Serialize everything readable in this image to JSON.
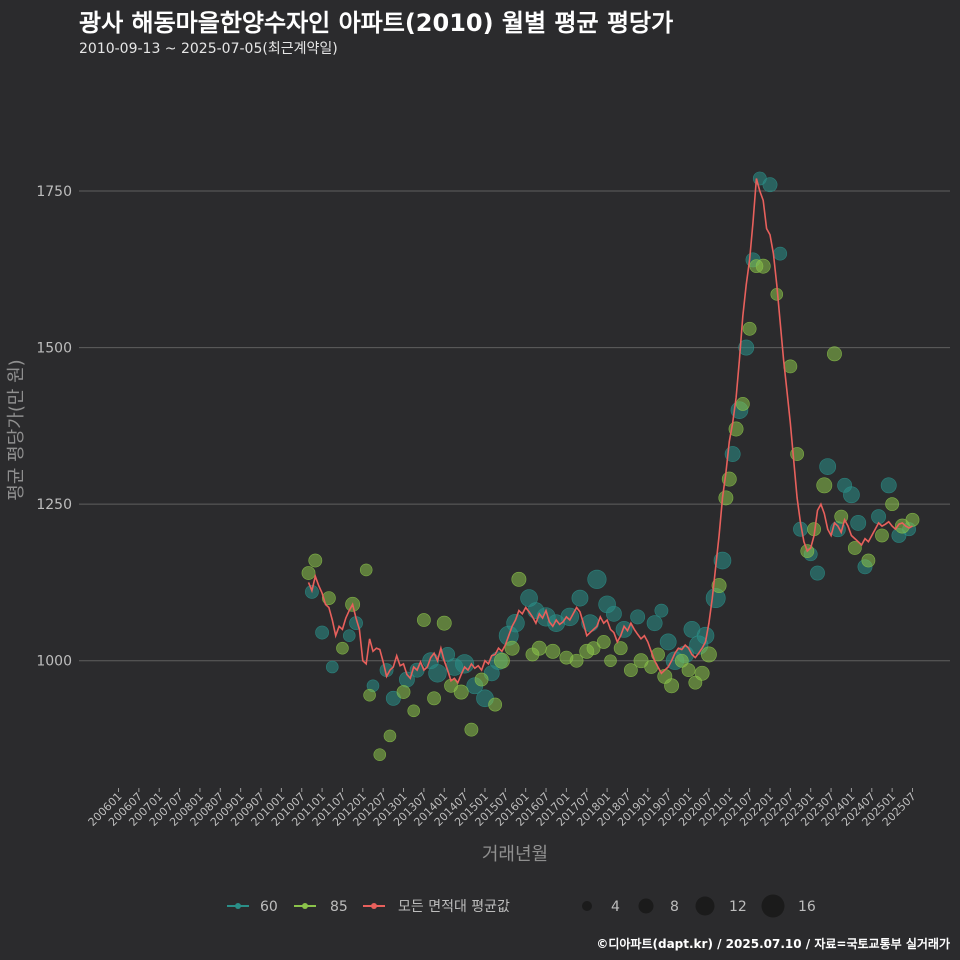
{
  "colors": {
    "background": "#2b2b2d",
    "grid": "#5f5f5f",
    "s60": "#2a8f88",
    "s85": "#8bc34a",
    "avg": "#e8605c"
  },
  "chart_data": {
    "type": "scatter",
    "title": "광사 해동마을한양수자인 아파트(2010) 월별 평균 평당가",
    "subtitle": "2010-09-13 ~ 2025-07-05(최근계약일)",
    "xlabel": "거래년월",
    "ylabel": "평균 평당가(만 원)",
    "ylim": [
      800,
      1940
    ],
    "yticks": [
      1000,
      1250,
      1500,
      1750
    ],
    "xlim": [
      "2006-01",
      "2025-07"
    ],
    "xticks": [
      "200601",
      "200607",
      "200701",
      "200707",
      "200801",
      "200807",
      "200901",
      "200907",
      "201001",
      "201007",
      "201101",
      "201107",
      "201201",
      "201207",
      "201301",
      "201307",
      "201401",
      "201407",
      "201501",
      "201507",
      "201601",
      "201607",
      "201701",
      "201707",
      "201801",
      "201807",
      "201901",
      "201907",
      "202001",
      "202007",
      "202101",
      "202107",
      "202201",
      "202207",
      "202301",
      "202307",
      "202401",
      "202407",
      "202501",
      "202507"
    ],
    "legend": {
      "series": [
        {
          "key": "60",
          "label": "60",
          "color": "#2a8f88"
        },
        {
          "key": "85",
          "label": "85",
          "color": "#8bc34a"
        },
        {
          "key": "avg",
          "label": "모든 면적대 평균값",
          "color": "#e8605c"
        }
      ],
      "size_title": "",
      "sizes": [
        4,
        8,
        12,
        16
      ]
    },
    "avg_line": [
      [
        "2010-09",
        1125
      ],
      [
        "2010-10",
        1112
      ],
      [
        "2010-11",
        1135
      ],
      [
        "2010-12",
        1120
      ],
      [
        "2011-01",
        1108
      ],
      [
        "2011-02",
        1090
      ],
      [
        "2011-03",
        1085
      ],
      [
        "2011-04",
        1065
      ],
      [
        "2011-05",
        1040
      ],
      [
        "2011-06",
        1055
      ],
      [
        "2011-07",
        1050
      ],
      [
        "2011-08",
        1068
      ],
      [
        "2011-09",
        1080
      ],
      [
        "2011-10",
        1090
      ],
      [
        "2011-11",
        1068
      ],
      [
        "2011-12",
        1050
      ],
      [
        "2012-01",
        1000
      ],
      [
        "2012-02",
        995
      ],
      [
        "2012-03",
        1035
      ],
      [
        "2012-04",
        1015
      ],
      [
        "2012-05",
        1020
      ],
      [
        "2012-06",
        1018
      ],
      [
        "2012-07",
        998
      ],
      [
        "2012-08",
        975
      ],
      [
        "2012-09",
        985
      ],
      [
        "2012-10",
        990
      ],
      [
        "2012-11",
        1008
      ],
      [
        "2012-12",
        992
      ],
      [
        "2013-01",
        995
      ],
      [
        "2013-02",
        978
      ],
      [
        "2013-03",
        972
      ],
      [
        "2013-04",
        990
      ],
      [
        "2013-05",
        985
      ],
      [
        "2013-06",
        998
      ],
      [
        "2013-07",
        985
      ],
      [
        "2013-08",
        990
      ],
      [
        "2013-09",
        1005
      ],
      [
        "2013-10",
        1012
      ],
      [
        "2013-11",
        1000
      ],
      [
        "2013-12",
        1020
      ],
      [
        "2014-01",
        1000
      ],
      [
        "2014-02",
        985
      ],
      [
        "2014-03",
        968
      ],
      [
        "2014-04",
        972
      ],
      [
        "2014-05",
        965
      ],
      [
        "2014-06",
        978
      ],
      [
        "2014-07",
        990
      ],
      [
        "2014-08",
        985
      ],
      [
        "2014-09",
        995
      ],
      [
        "2014-10",
        988
      ],
      [
        "2014-11",
        992
      ],
      [
        "2014-12",
        985
      ],
      [
        "2015-01",
        1000
      ],
      [
        "2015-02",
        995
      ],
      [
        "2015-03",
        1008
      ],
      [
        "2015-04",
        1010
      ],
      [
        "2015-05",
        1020
      ],
      [
        "2015-06",
        1015
      ],
      [
        "2015-07",
        1025
      ],
      [
        "2015-08",
        1040
      ],
      [
        "2015-09",
        1055
      ],
      [
        "2015-10",
        1065
      ],
      [
        "2015-11",
        1080
      ],
      [
        "2015-12",
        1075
      ],
      [
        "2016-01",
        1085
      ],
      [
        "2016-02",
        1078
      ],
      [
        "2016-03",
        1070
      ],
      [
        "2016-04",
        1060
      ],
      [
        "2016-05",
        1075
      ],
      [
        "2016-06",
        1068
      ],
      [
        "2016-07",
        1080
      ],
      [
        "2016-08",
        1062
      ],
      [
        "2016-09",
        1055
      ],
      [
        "2016-10",
        1065
      ],
      [
        "2016-11",
        1058
      ],
      [
        "2016-12",
        1062
      ],
      [
        "2017-01",
        1070
      ],
      [
        "2017-02",
        1065
      ],
      [
        "2017-03",
        1075
      ],
      [
        "2017-04",
        1085
      ],
      [
        "2017-05",
        1078
      ],
      [
        "2017-06",
        1060
      ],
      [
        "2017-07",
        1040
      ],
      [
        "2017-08",
        1045
      ],
      [
        "2017-09",
        1050
      ],
      [
        "2017-10",
        1055
      ],
      [
        "2017-11",
        1070
      ],
      [
        "2017-12",
        1060
      ],
      [
        "2018-01",
        1065
      ],
      [
        "2018-02",
        1050
      ],
      [
        "2018-03",
        1045
      ],
      [
        "2018-04",
        1030
      ],
      [
        "2018-05",
        1040
      ],
      [
        "2018-06",
        1055
      ],
      [
        "2018-07",
        1048
      ],
      [
        "2018-08",
        1060
      ],
      [
        "2018-09",
        1050
      ],
      [
        "2018-10",
        1042
      ],
      [
        "2018-11",
        1035
      ],
      [
        "2018-12",
        1040
      ],
      [
        "2019-01",
        1030
      ],
      [
        "2019-02",
        1015
      ],
      [
        "2019-03",
        1000
      ],
      [
        "2019-04",
        990
      ],
      [
        "2019-05",
        980
      ],
      [
        "2019-06",
        985
      ],
      [
        "2019-07",
        990
      ],
      [
        "2019-08",
        1000
      ],
      [
        "2019-09",
        1012
      ],
      [
        "2019-10",
        1020
      ],
      [
        "2019-11",
        1018
      ],
      [
        "2019-12",
        1025
      ],
      [
        "2020-01",
        1020
      ],
      [
        "2020-02",
        1010
      ],
      [
        "2020-03",
        1005
      ],
      [
        "2020-04",
        1012
      ],
      [
        "2020-05",
        1020
      ],
      [
        "2020-06",
        1030
      ],
      [
        "2020-07",
        1060
      ],
      [
        "2020-08",
        1100
      ],
      [
        "2020-09",
        1150
      ],
      [
        "2020-10",
        1200
      ],
      [
        "2020-11",
        1260
      ],
      [
        "2020-12",
        1300
      ],
      [
        "2021-01",
        1350
      ],
      [
        "2021-02",
        1380
      ],
      [
        "2021-03",
        1420
      ],
      [
        "2021-04",
        1480
      ],
      [
        "2021-05",
        1550
      ],
      [
        "2021-06",
        1600
      ],
      [
        "2021-07",
        1640
      ],
      [
        "2021-08",
        1700
      ],
      [
        "2021-09",
        1770
      ],
      [
        "2021-10",
        1750
      ],
      [
        "2021-11",
        1735
      ],
      [
        "2021-12",
        1690
      ],
      [
        "2022-01",
        1680
      ],
      [
        "2022-02",
        1650
      ],
      [
        "2022-03",
        1600
      ],
      [
        "2022-04",
        1540
      ],
      [
        "2022-05",
        1480
      ],
      [
        "2022-06",
        1430
      ],
      [
        "2022-07",
        1380
      ],
      [
        "2022-08",
        1320
      ],
      [
        "2022-09",
        1260
      ],
      [
        "2022-10",
        1220
      ],
      [
        "2022-11",
        1190
      ],
      [
        "2022-12",
        1175
      ],
      [
        "2023-01",
        1180
      ],
      [
        "2023-02",
        1200
      ],
      [
        "2023-03",
        1240
      ],
      [
        "2023-04",
        1250
      ],
      [
        "2023-05",
        1235
      ],
      [
        "2023-06",
        1210
      ],
      [
        "2023-07",
        1200
      ],
      [
        "2023-08",
        1220
      ],
      [
        "2023-09",
        1215
      ],
      [
        "2023-10",
        1205
      ],
      [
        "2023-11",
        1225
      ],
      [
        "2023-12",
        1215
      ],
      [
        "2024-01",
        1200
      ],
      [
        "2024-02",
        1195
      ],
      [
        "2024-03",
        1190
      ],
      [
        "2024-04",
        1185
      ],
      [
        "2024-05",
        1195
      ],
      [
        "2024-06",
        1190
      ],
      [
        "2024-07",
        1200
      ],
      [
        "2024-08",
        1210
      ],
      [
        "2024-09",
        1220
      ],
      [
        "2024-10",
        1215
      ],
      [
        "2024-11",
        1218
      ],
      [
        "2024-12",
        1222
      ],
      [
        "2025-01",
        1215
      ],
      [
        "2025-02",
        1210
      ],
      [
        "2025-03",
        1218
      ],
      [
        "2025-04",
        1220
      ],
      [
        "2025-05",
        1215
      ],
      [
        "2025-06",
        1212
      ],
      [
        "2025-07",
        1215
      ]
    ],
    "points_60": [
      [
        "2010-10",
        1110,
        4
      ],
      [
        "2011-01",
        1045,
        4
      ],
      [
        "2011-04",
        990,
        3
      ],
      [
        "2011-09",
        1040,
        3
      ],
      [
        "2011-11",
        1060,
        4
      ],
      [
        "2012-04",
        960,
        3
      ],
      [
        "2012-08",
        985,
        4
      ],
      [
        "2012-10",
        940,
        5
      ],
      [
        "2013-02",
        970,
        6
      ],
      [
        "2013-05",
        985,
        5
      ],
      [
        "2013-09",
        1000,
        7
      ],
      [
        "2013-11",
        980,
        9
      ],
      [
        "2014-02",
        1010,
        5
      ],
      [
        "2014-04",
        990,
        8
      ],
      [
        "2014-07",
        995,
        10
      ],
      [
        "2014-10",
        960,
        7
      ],
      [
        "2015-01",
        940,
        8
      ],
      [
        "2015-03",
        980,
        6
      ],
      [
        "2015-05",
        1000,
        9
      ],
      [
        "2015-08",
        1040,
        11
      ],
      [
        "2015-10",
        1060,
        9
      ],
      [
        "2016-02",
        1100,
        8
      ],
      [
        "2016-04",
        1080,
        7
      ],
      [
        "2016-07",
        1070,
        10
      ],
      [
        "2016-10",
        1060,
        8
      ],
      [
        "2017-02",
        1070,
        9
      ],
      [
        "2017-05",
        1100,
        7
      ],
      [
        "2017-08",
        1060,
        8
      ],
      [
        "2017-10",
        1130,
        10
      ],
      [
        "2018-01",
        1090,
        8
      ],
      [
        "2018-03",
        1075,
        6
      ],
      [
        "2018-06",
        1050,
        7
      ],
      [
        "2018-10",
        1070,
        5
      ],
      [
        "2019-03",
        1060,
        6
      ],
      [
        "2019-05",
        1080,
        4
      ],
      [
        "2019-07",
        1030,
        7
      ],
      [
        "2019-09",
        1000,
        9
      ],
      [
        "2019-12",
        1010,
        8
      ],
      [
        "2020-02",
        1050,
        7
      ],
      [
        "2020-04",
        1025,
        10
      ],
      [
        "2020-06",
        1040,
        8
      ],
      [
        "2020-09",
        1100,
        11
      ],
      [
        "2020-11",
        1160,
        8
      ],
      [
        "2021-02",
        1330,
        6
      ],
      [
        "2021-04",
        1400,
        8
      ],
      [
        "2021-06",
        1500,
        6
      ],
      [
        "2021-08",
        1640,
        5
      ],
      [
        "2021-10",
        1770,
        4
      ],
      [
        "2022-01",
        1760,
        5
      ],
      [
        "2022-04",
        1650,
        4
      ],
      [
        "2022-10",
        1210,
        5
      ],
      [
        "2023-01",
        1170,
        4
      ],
      [
        "2023-03",
        1140,
        5
      ],
      [
        "2023-06",
        1310,
        7
      ],
      [
        "2023-09",
        1210,
        6
      ],
      [
        "2023-11",
        1280,
        5
      ],
      [
        "2024-01",
        1265,
        7
      ],
      [
        "2024-03",
        1220,
        6
      ],
      [
        "2024-05",
        1150,
        5
      ],
      [
        "2024-09",
        1230,
        5
      ],
      [
        "2024-12",
        1280,
        6
      ],
      [
        "2025-03",
        1200,
        5
      ],
      [
        "2025-06",
        1210,
        4
      ]
    ],
    "points_85": [
      [
        "2010-09",
        1140,
        4
      ],
      [
        "2010-11",
        1160,
        4
      ],
      [
        "2011-03",
        1100,
        4
      ],
      [
        "2011-07",
        1020,
        3
      ],
      [
        "2011-10",
        1090,
        5
      ],
      [
        "2012-02",
        1145,
        3
      ],
      [
        "2012-03",
        945,
        3
      ],
      [
        "2012-06",
        850,
        3
      ],
      [
        "2012-09",
        880,
        3
      ],
      [
        "2013-01",
        950,
        4
      ],
      [
        "2013-04",
        920,
        3
      ],
      [
        "2013-07",
        1065,
        4
      ],
      [
        "2013-10",
        940,
        4
      ],
      [
        "2014-01",
        1060,
        5
      ],
      [
        "2014-03",
        960,
        4
      ],
      [
        "2014-06",
        950,
        5
      ],
      [
        "2014-09",
        890,
        4
      ],
      [
        "2014-12",
        970,
        4
      ],
      [
        "2015-04",
        930,
        4
      ],
      [
        "2015-06",
        1000,
        6
      ],
      [
        "2015-09",
        1020,
        5
      ],
      [
        "2015-11",
        1130,
        5
      ],
      [
        "2016-03",
        1010,
        4
      ],
      [
        "2016-05",
        1020,
        5
      ],
      [
        "2016-09",
        1015,
        5
      ],
      [
        "2017-01",
        1005,
        4
      ],
      [
        "2017-04",
        1000,
        4
      ],
      [
        "2017-07",
        1015,
        5
      ],
      [
        "2017-09",
        1020,
        4
      ],
      [
        "2017-12",
        1030,
        4
      ],
      [
        "2018-02",
        1000,
        3
      ],
      [
        "2018-05",
        1020,
        4
      ],
      [
        "2018-08",
        985,
        4
      ],
      [
        "2018-11",
        1000,
        5
      ],
      [
        "2019-02",
        990,
        4
      ],
      [
        "2019-04",
        1010,
        4
      ],
      [
        "2019-06",
        975,
        5
      ],
      [
        "2019-08",
        960,
        5
      ],
      [
        "2019-11",
        1000,
        4
      ],
      [
        "2020-01",
        985,
        4
      ],
      [
        "2020-03",
        965,
        4
      ],
      [
        "2020-05",
        980,
        5
      ],
      [
        "2020-07",
        1010,
        6
      ],
      [
        "2020-10",
        1120,
        5
      ],
      [
        "2020-12",
        1260,
        5
      ],
      [
        "2021-01",
        1290,
        5
      ],
      [
        "2021-03",
        1370,
        5
      ],
      [
        "2021-05",
        1410,
        4
      ],
      [
        "2021-07",
        1530,
        4
      ],
      [
        "2021-09",
        1630,
        4
      ],
      [
        "2021-11",
        1630,
        5
      ],
      [
        "2022-03",
        1585,
        3
      ],
      [
        "2022-07",
        1470,
        4
      ],
      [
        "2022-09",
        1330,
        4
      ],
      [
        "2022-12",
        1175,
        4
      ],
      [
        "2023-02",
        1210,
        4
      ],
      [
        "2023-05",
        1280,
        6
      ],
      [
        "2023-08",
        1490,
        5
      ],
      [
        "2023-10",
        1230,
        4
      ],
      [
        "2024-02",
        1180,
        4
      ],
      [
        "2024-06",
        1160,
        4
      ],
      [
        "2024-10",
        1200,
        4
      ],
      [
        "2025-01",
        1250,
        4
      ],
      [
        "2025-04",
        1215,
        5
      ],
      [
        "2025-07",
        1225,
        4
      ]
    ]
  },
  "caption": "©디아파트(dapt.kr) / 2025.07.10 / 자료=국토교통부 실거래가"
}
